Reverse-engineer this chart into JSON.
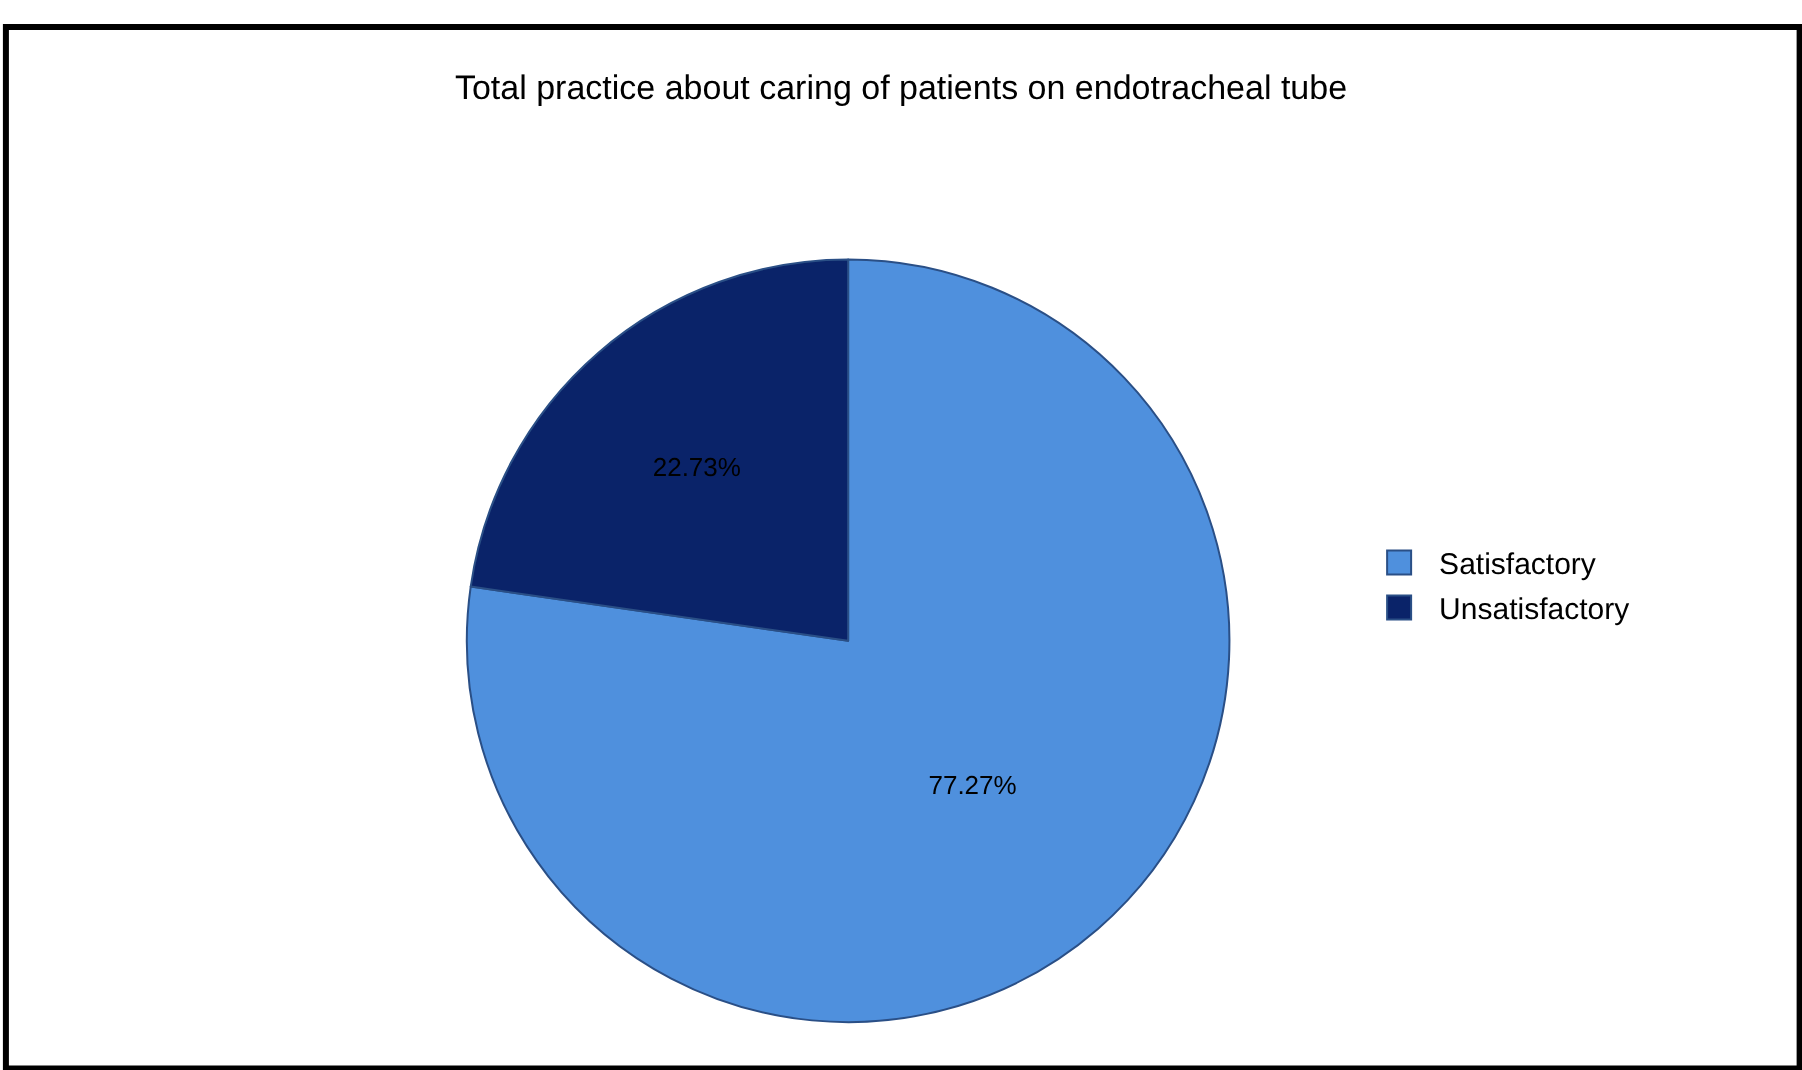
{
  "chart_data": {
    "type": "pie",
    "title": "Total practice about caring of patients on endotracheal tube",
    "categories": [
      "Satisfactory",
      "Unsatisfactory"
    ],
    "values": [
      77.27,
      22.73
    ],
    "colors": [
      "#4f90dd",
      "#0a2369"
    ],
    "value_labels": [
      "77.27%",
      "22.73%"
    ],
    "legend": "right"
  }
}
